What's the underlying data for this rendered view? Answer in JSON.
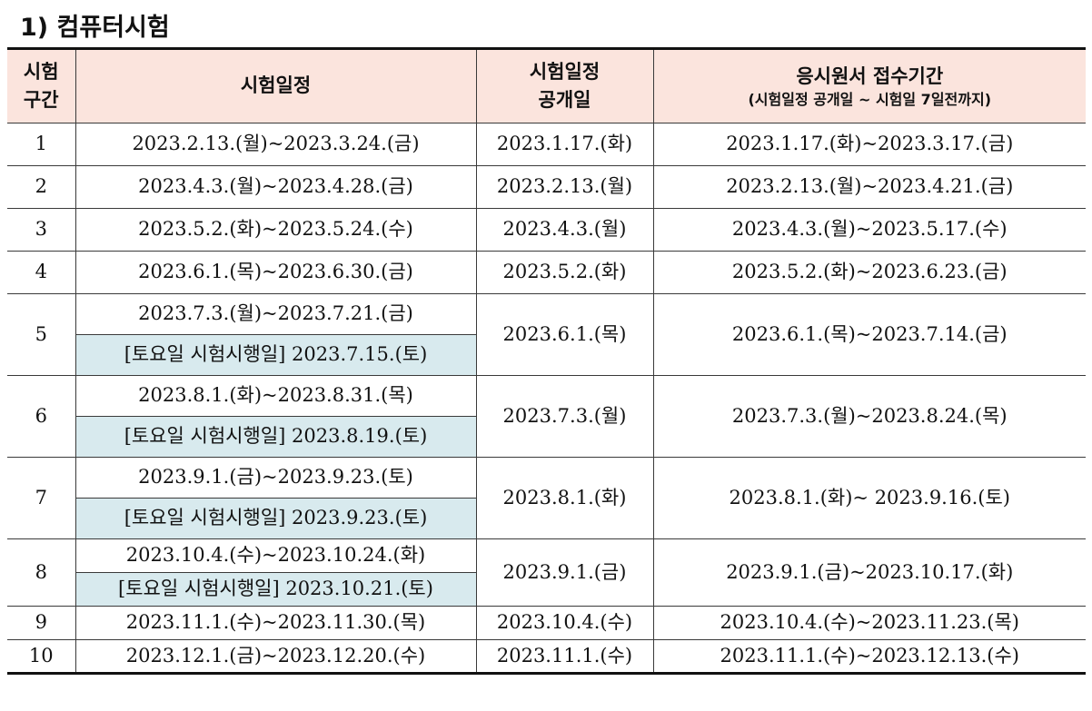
{
  "title": "1) 컴퓨터시험",
  "headers": {
    "col1_l1": "시험",
    "col1_l2": "구간",
    "col2": "시험일정",
    "col3_l1": "시험일정",
    "col3_l2": "공개일",
    "col4_l1": "응시원서 접수기간",
    "col4_l2": "(시험일정 공개일 ~ 시험일 7일전까지)"
  },
  "rows": [
    {
      "no": "1",
      "schedule": "2023.2.13.(월)~2023.3.24.(금)",
      "open": "2023.1.17.(화)",
      "apply": "2023.1.17.(화)~2023.3.17.(금)"
    },
    {
      "no": "2",
      "schedule": "2023.4.3.(월)~2023.4.28.(금)",
      "open": "2023.2.13.(월)",
      "apply": "2023.2.13.(월)~2023.4.21.(금)"
    },
    {
      "no": "3",
      "schedule": "2023.5.2.(화)~2023.5.24.(수)",
      "open": "2023.4.3.(월)",
      "apply": "2023.4.3.(월)~2023.5.17.(수)"
    },
    {
      "no": "4",
      "schedule": "2023.6.1.(목)~2023.6.30.(금)",
      "open": "2023.5.2.(화)",
      "apply": "2023.5.2.(화)~2023.6.23.(금)"
    },
    {
      "no": "5",
      "schedule": "2023.7.3.(월)~2023.7.21.(금)",
      "saturday": "[토요일 시험시행일] 2023.7.15.(토)",
      "open": "2023.6.1.(목)",
      "apply": "2023.6.1.(목)~2023.7.14.(금)"
    },
    {
      "no": "6",
      "schedule": "2023.8.1.(화)~2023.8.31.(목)",
      "saturday": "[토요일 시험시행일] 2023.8.19.(토)",
      "open": "2023.7.3.(월)",
      "apply": "2023.7.3.(월)~2023.8.24.(목)"
    },
    {
      "no": "7",
      "schedule": "2023.9.1.(금)~2023.9.23.(토)",
      "saturday": "[토요일 시험시행일] 2023.9.23.(토)",
      "open": "2023.8.1.(화)",
      "apply": "2023.8.1.(화)~ 2023.9.16.(토)"
    },
    {
      "no": "8",
      "schedule": "2023.10.4.(수)~2023.10.24.(화)",
      "saturday": "[토요일 시험시행일] 2023.10.21.(토)",
      "open": "2023.9.1.(금)",
      "apply": "2023.9.1.(금)~2023.10.17.(화)"
    },
    {
      "no": "9",
      "schedule": "2023.11.1.(수)~2023.11.30.(목)",
      "open": "2023.10.4.(수)",
      "apply": "2023.10.4.(수)~2023.11.23.(목)"
    },
    {
      "no": "10",
      "schedule": "2023.12.1.(금)~2023.12.20.(수)",
      "open": "2023.11.1.(수)",
      "apply": "2023.11.1.(수)~2023.12.13.(수)"
    }
  ]
}
